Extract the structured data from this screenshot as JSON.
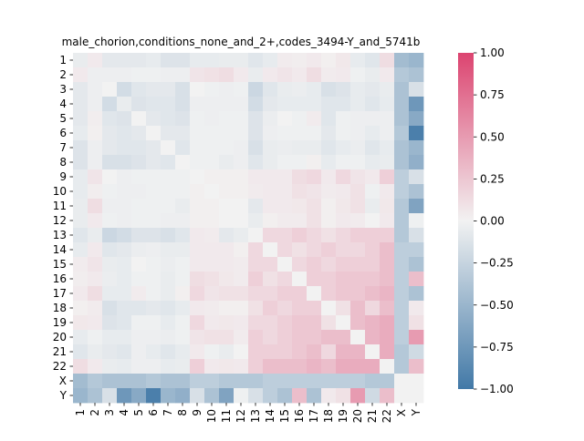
{
  "chart_data": {
    "type": "heatmap",
    "title": "male_chorion,conditions_none_and_2+,codes_3494-Y_and_5741b",
    "labels": [
      "1",
      "2",
      "3",
      "4",
      "5",
      "6",
      "7",
      "8",
      "9",
      "10",
      "11",
      "12",
      "13",
      "14",
      "15",
      "16",
      "17",
      "18",
      "19",
      "20",
      "21",
      "22",
      "X",
      "Y"
    ],
    "colorbar": {
      "min": -1.0,
      "max": 1.0,
      "ticks": [
        "1.00",
        "0.75",
        "0.50",
        "0.25",
        "0.00",
        "−0.25",
        "−0.50",
        "−0.75",
        "−1.00"
      ],
      "tick_values": [
        1.0,
        0.75,
        0.5,
        0.25,
        0.0,
        -0.25,
        -0.5,
        -0.75,
        -1.0
      ],
      "colors": {
        "negative": "#4279a7",
        "center": "#f2f2f2",
        "positive": "#dc4470"
      }
    },
    "matrix": [
      [
        -0.05,
        0.05,
        -0.08,
        -0.08,
        -0.08,
        -0.06,
        -0.12,
        -0.12,
        -0.06,
        -0.06,
        -0.05,
        -0.05,
        -0.1,
        -0.06,
        0.04,
        0.03,
        0.05,
        0.02,
        0.06,
        -0.06,
        -0.1,
        0.12,
        -0.45,
        -0.5
      ],
      [
        0.05,
        -0.03,
        -0.03,
        -0.03,
        -0.02,
        -0.02,
        -0.03,
        -0.03,
        0.08,
        0.1,
        0.12,
        0.05,
        -0.05,
        0.05,
        0.08,
        0.05,
        0.12,
        0.04,
        0.05,
        -0.02,
        -0.05,
        0.05,
        -0.35,
        -0.4
      ],
      [
        -0.08,
        -0.03,
        0.0,
        -0.18,
        -0.1,
        -0.08,
        -0.08,
        -0.15,
        0.0,
        -0.02,
        -0.03,
        -0.02,
        -0.22,
        -0.1,
        -0.05,
        -0.04,
        -0.06,
        -0.15,
        -0.12,
        -0.06,
        -0.08,
        -0.05,
        -0.4,
        -0.15
      ],
      [
        -0.08,
        -0.03,
        -0.18,
        -0.05,
        -0.12,
        -0.1,
        -0.1,
        -0.15,
        -0.03,
        -0.03,
        -0.03,
        -0.03,
        -0.18,
        -0.08,
        -0.06,
        -0.06,
        -0.06,
        -0.1,
        -0.1,
        -0.06,
        -0.1,
        -0.06,
        -0.4,
        -0.75
      ],
      [
        -0.08,
        0.03,
        -0.1,
        -0.12,
        0.0,
        -0.08,
        -0.1,
        -0.12,
        -0.02,
        -0.03,
        -0.02,
        -0.02,
        -0.12,
        -0.04,
        0.0,
        -0.02,
        0.04,
        -0.1,
        -0.02,
        -0.03,
        -0.03,
        -0.03,
        -0.4,
        -0.6
      ],
      [
        -0.06,
        0.02,
        -0.08,
        -0.1,
        -0.08,
        0.0,
        -0.08,
        -0.08,
        -0.02,
        -0.02,
        -0.02,
        -0.02,
        -0.12,
        -0.03,
        -0.02,
        -0.02,
        -0.02,
        -0.08,
        -0.02,
        -0.03,
        -0.06,
        -0.03,
        -0.35,
        -0.95
      ],
      [
        -0.12,
        -0.03,
        -0.08,
        -0.1,
        -0.1,
        -0.08,
        0.0,
        -0.1,
        -0.02,
        -0.02,
        -0.02,
        -0.03,
        -0.15,
        -0.05,
        -0.04,
        -0.05,
        -0.05,
        -0.1,
        -0.06,
        -0.04,
        -0.1,
        -0.06,
        -0.4,
        -0.5
      ],
      [
        -0.12,
        -0.03,
        -0.15,
        -0.15,
        -0.12,
        -0.08,
        -0.1,
        0.0,
        -0.02,
        -0.02,
        -0.05,
        -0.03,
        -0.1,
        -0.05,
        -0.02,
        -0.02,
        0.02,
        -0.06,
        -0.02,
        -0.02,
        -0.06,
        -0.05,
        -0.4,
        -0.55
      ],
      [
        -0.06,
        0.08,
        0.0,
        -0.03,
        -0.02,
        -0.02,
        -0.02,
        -0.02,
        0.0,
        0.02,
        0.02,
        0.02,
        0.05,
        0.05,
        0.05,
        0.12,
        0.15,
        0.05,
        0.15,
        0.08,
        0.05,
        0.2,
        -0.3,
        -0.15
      ],
      [
        -0.06,
        0.03,
        -0.02,
        -0.03,
        -0.03,
        -0.02,
        -0.02,
        -0.02,
        0.02,
        0.0,
        0.02,
        0.02,
        0.04,
        0.05,
        0.05,
        0.1,
        0.08,
        0.04,
        0.05,
        0.1,
        -0.02,
        0.05,
        -0.3,
        -0.4
      ],
      [
        -0.05,
        0.12,
        -0.03,
        -0.03,
        -0.02,
        -0.02,
        -0.02,
        -0.05,
        0.02,
        0.02,
        0.0,
        0.0,
        -0.08,
        0.05,
        0.05,
        0.06,
        0.1,
        0.02,
        0.06,
        0.1,
        -0.05,
        0.06,
        -0.35,
        -0.65
      ],
      [
        -0.05,
        0.05,
        -0.02,
        -0.03,
        -0.02,
        -0.02,
        -0.03,
        -0.03,
        0.02,
        0.02,
        0.0,
        0.0,
        -0.05,
        0.02,
        0.04,
        0.04,
        0.1,
        0.02,
        0.05,
        0.04,
        0.0,
        0.05,
        -0.35,
        -0.02
      ],
      [
        -0.1,
        -0.05,
        -0.22,
        -0.18,
        -0.12,
        -0.12,
        -0.15,
        -0.1,
        0.05,
        0.04,
        -0.08,
        -0.05,
        0.0,
        0.15,
        0.15,
        0.2,
        0.15,
        0.1,
        0.15,
        0.2,
        0.2,
        0.2,
        -0.35,
        -0.15
      ],
      [
        -0.06,
        0.05,
        -0.1,
        -0.08,
        -0.04,
        -0.03,
        -0.05,
        -0.05,
        0.05,
        0.05,
        0.05,
        0.02,
        0.15,
        0.0,
        0.15,
        0.1,
        0.15,
        0.2,
        0.15,
        0.15,
        0.2,
        0.3,
        -0.3,
        -0.3
      ],
      [
        0.04,
        0.08,
        -0.05,
        -0.06,
        0.0,
        -0.02,
        -0.04,
        -0.02,
        0.05,
        0.05,
        0.05,
        0.04,
        0.15,
        0.15,
        0.0,
        0.15,
        0.2,
        0.15,
        0.2,
        0.2,
        0.2,
        0.3,
        -0.3,
        -0.4
      ],
      [
        0.03,
        0.05,
        -0.04,
        -0.06,
        -0.02,
        -0.02,
        -0.05,
        -0.02,
        0.12,
        0.1,
        0.06,
        0.04,
        0.2,
        0.1,
        0.15,
        0.0,
        0.2,
        0.2,
        0.25,
        0.25,
        0.25,
        0.3,
        -0.3,
        0.3
      ],
      [
        0.05,
        0.12,
        -0.06,
        -0.06,
        0.04,
        -0.02,
        -0.05,
        0.02,
        0.15,
        0.08,
        0.1,
        0.1,
        0.15,
        0.15,
        0.2,
        0.2,
        0.0,
        0.2,
        0.25,
        0.25,
        0.3,
        0.35,
        -0.3,
        -0.4
      ],
      [
        0.02,
        0.04,
        -0.15,
        -0.1,
        -0.1,
        -0.08,
        -0.1,
        -0.06,
        0.05,
        0.04,
        0.02,
        0.02,
        0.1,
        0.2,
        0.15,
        0.2,
        0.2,
        0.0,
        0.1,
        0.3,
        0.15,
        0.3,
        -0.3,
        0.05
      ],
      [
        0.06,
        0.05,
        -0.12,
        -0.1,
        -0.02,
        -0.02,
        -0.06,
        -0.02,
        0.15,
        0.05,
        0.06,
        0.05,
        0.15,
        0.15,
        0.2,
        0.25,
        0.25,
        0.1,
        0.0,
        0.3,
        0.35,
        0.4,
        -0.3,
        0.1
      ],
      [
        -0.06,
        -0.02,
        -0.06,
        -0.06,
        -0.03,
        -0.03,
        -0.04,
        -0.02,
        0.08,
        0.1,
        0.1,
        0.04,
        0.2,
        0.15,
        0.2,
        0.25,
        0.25,
        0.3,
        0.3,
        0.0,
        0.35,
        0.4,
        -0.3,
        0.5
      ],
      [
        -0.1,
        -0.05,
        -0.08,
        -0.1,
        -0.03,
        -0.06,
        -0.1,
        -0.06,
        0.05,
        -0.02,
        -0.05,
        0.0,
        0.2,
        0.2,
        0.2,
        0.25,
        0.3,
        0.15,
        0.35,
        0.35,
        0.0,
        0.4,
        -0.35,
        -0.2
      ],
      [
        0.12,
        0.05,
        -0.05,
        -0.06,
        -0.03,
        -0.03,
        -0.06,
        -0.05,
        0.2,
        0.05,
        0.06,
        0.05,
        0.2,
        0.3,
        0.3,
        0.3,
        0.35,
        0.3,
        0.4,
        0.4,
        0.4,
        0.0,
        -0.35,
        0.3
      ],
      [
        -0.45,
        -0.35,
        -0.4,
        -0.4,
        -0.4,
        -0.35,
        -0.4,
        -0.4,
        -0.3,
        -0.3,
        -0.35,
        -0.35,
        -0.35,
        -0.3,
        -0.3,
        -0.3,
        -0.3,
        -0.3,
        -0.3,
        -0.3,
        -0.35,
        -0.35,
        0.0,
        0.0
      ],
      [
        -0.5,
        -0.4,
        -0.15,
        -0.75,
        -0.6,
        -0.95,
        -0.5,
        -0.55,
        -0.15,
        -0.4,
        -0.65,
        -0.02,
        -0.15,
        -0.3,
        -0.4,
        0.3,
        -0.4,
        0.05,
        0.1,
        0.5,
        -0.2,
        0.3,
        0.0,
        0.0
      ]
    ]
  }
}
